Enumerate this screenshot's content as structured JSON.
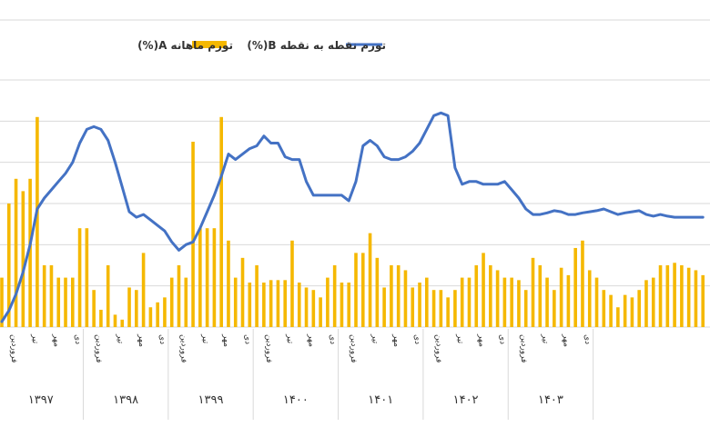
{
  "chart_data": {
    "type": "bar",
    "title": "",
    "xlabel": "",
    "ylabel": "",
    "grid": true,
    "legend_position": "top",
    "colors": {
      "bars": "#F5B800",
      "line": "#4472C4",
      "grid": "#D9D9D9"
    },
    "years": [
      "۱۳۹۷",
      "۱۳۹۸",
      "۱۳۹۹",
      "۱۴۰۰",
      "۱۴۰۱",
      "۱۴۰۲",
      "۱۴۰۳"
    ],
    "month_labels": [
      "فروردین",
      "تیر",
      "مهر",
      "دی"
    ],
    "series": [
      {
        "name": "تورم ماهانه A(%)",
        "kind": "bar",
        "values": [
          2.0,
          5.0,
          6.0,
          5.5,
          6.0,
          8.5,
          2.5,
          2.5,
          2.0,
          2.0,
          2.0,
          4.0,
          4.0,
          1.5,
          0.7,
          2.5,
          0.5,
          0.3,
          1.6,
          1.5,
          3.0,
          0.8,
          1.0,
          1.2,
          2.0,
          2.5,
          2.0,
          7.5,
          4.0,
          4.0,
          4.0,
          8.5,
          3.5,
          2.0,
          2.8,
          1.8,
          2.5,
          1.8,
          1.9,
          1.9,
          1.9,
          3.5,
          1.8,
          1.6,
          1.5,
          1.2,
          2.0,
          2.5,
          1.8,
          1.8,
          3.0,
          3.0,
          3.8,
          2.8,
          1.6,
          2.5,
          2.5,
          2.3,
          1.6,
          1.8,
          2.0,
          1.5,
          1.5,
          1.2,
          1.5,
          2.0,
          2.0,
          2.5,
          3.0,
          2.5,
          2.3,
          2.0,
          2.0,
          1.9,
          1.5,
          2.8,
          2.5,
          2.0,
          1.5,
          2.4,
          2.1,
          3.2,
          3.5,
          2.3,
          2.0,
          1.5,
          1.3,
          0.8,
          1.3,
          1.2,
          1.5,
          1.9,
          2.0,
          2.5,
          2.5,
          2.6,
          2.5,
          2.4,
          2.3,
          2.1
        ]
      },
      {
        "name": "تورم نقطه به نقطه B(%)",
        "kind": "line",
        "values": [
          16.0,
          18.0,
          21.0,
          25.0,
          30.0,
          36.5,
          38.5,
          40.0,
          41.5,
          43.0,
          45.0,
          48.5,
          51.0,
          51.5,
          51.0,
          49.0,
          45.0,
          40.5,
          36.0,
          35.0,
          35.5,
          34.5,
          33.5,
          32.5,
          30.5,
          29.0,
          30.0,
          30.5,
          33.0,
          36.0,
          39.0,
          42.5,
          46.5,
          45.5,
          46.5,
          47.5,
          48.0,
          49.8,
          48.5,
          48.5,
          46.0,
          45.5,
          45.5,
          41.5,
          39.0,
          39.0,
          39.0,
          39.0,
          39.0,
          38.0,
          41.5,
          48.0,
          49.0,
          48.0,
          46.0,
          45.5,
          45.5,
          46.0,
          47.0,
          48.5,
          51.0,
          53.5,
          54.0,
          53.5,
          44.0,
          41.0,
          41.5,
          41.5,
          41.0,
          41.0,
          41.0,
          41.5,
          40.0,
          38.5,
          36.5,
          35.5,
          35.5,
          35.8,
          36.2,
          36.0,
          35.5,
          35.5,
          35.8,
          36.0,
          36.2,
          36.5,
          36.0,
          35.5,
          35.8,
          36.0,
          36.2,
          35.5,
          35.2,
          35.5,
          35.2,
          35.0,
          35.0,
          35.0,
          35.0,
          35.0
        ]
      }
    ]
  }
}
